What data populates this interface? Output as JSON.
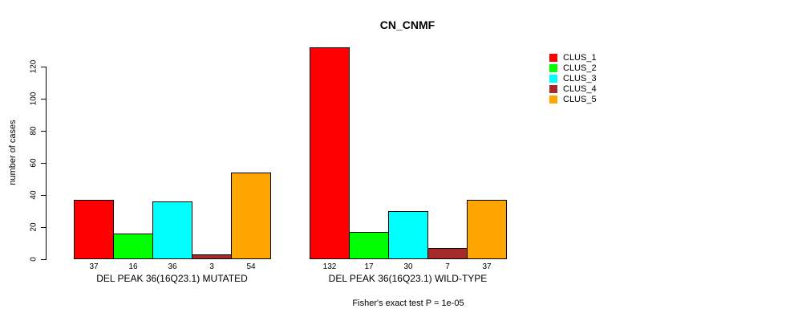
{
  "title": "CN_CNMF",
  "chart_data": {
    "type": "bar",
    "title": "CN_CNMF",
    "xlabel": "",
    "ylabel": "number of cases",
    "ylim": [
      0,
      120
    ],
    "yticks": [
      0,
      20,
      40,
      60,
      80,
      100,
      120
    ],
    "grid": false,
    "legend_position": "right-outside",
    "categories": [
      "DEL PEAK 36(16Q23.1) MUTATED",
      "DEL PEAK 36(16Q23.1) WILD-TYPE"
    ],
    "series": [
      {
        "name": "CLUS_1",
        "color": "#FF0000",
        "values": [
          37,
          132
        ]
      },
      {
        "name": "CLUS_2",
        "color": "#00FF00",
        "values": [
          16,
          17
        ]
      },
      {
        "name": "CLUS_3",
        "color": "#00FFFF",
        "values": [
          36,
          30
        ]
      },
      {
        "name": "CLUS_4",
        "color": "#A52A2A",
        "values": [
          3,
          7
        ]
      },
      {
        "name": "CLUS_5",
        "color": "#FFA500",
        "values": [
          54,
          37
        ]
      }
    ],
    "bar_value_labels": [
      [
        37,
        16,
        36,
        3,
        54
      ],
      [
        132,
        17,
        30,
        7,
        37
      ]
    ],
    "annotation": "Fisher's exact test P = 1e-05"
  }
}
